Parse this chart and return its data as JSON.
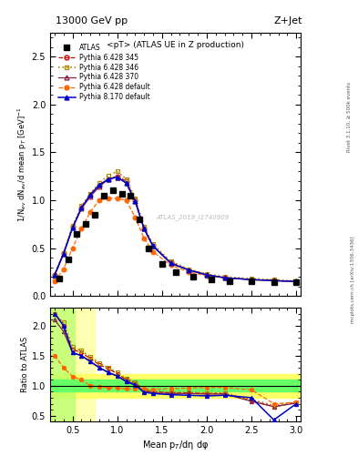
{
  "title_top": "13000 GeV pp",
  "title_right": "Z+Jet",
  "panel_title": "<pT> (ATLAS UE in Z production)",
  "ylabel_main": "1/N$_{ev}$ dN$_{ev}$/d mean p$_T$ [GeV]$^{-1}$",
  "ylabel_ratio": "Ratio to ATLAS",
  "xlabel": "Mean p$_{T}$/dη dφ",
  "watermark": "ATLAS_2019_I1740909",
  "rivet_text": "Rivet 3.1.10, ≥ 500k events",
  "mcplots_text": "mcplots.cern.ch [arXiv:1306.3436]",
  "x_atlas": [
    0.35,
    0.45,
    0.55,
    0.65,
    0.75,
    0.85,
    0.95,
    1.05,
    1.15,
    1.25,
    1.35,
    1.5,
    1.65,
    1.85,
    2.05,
    2.25,
    2.5,
    2.75,
    3.0
  ],
  "y_atlas": [
    0.18,
    0.38,
    0.65,
    0.75,
    0.85,
    1.05,
    1.1,
    1.07,
    1.05,
    0.8,
    0.5,
    0.33,
    0.25,
    0.2,
    0.17,
    0.155,
    0.15,
    0.14,
    0.14
  ],
  "x_mc": [
    0.3,
    0.4,
    0.5,
    0.6,
    0.7,
    0.8,
    0.9,
    1.0,
    1.1,
    1.2,
    1.3,
    1.4,
    1.6,
    1.8,
    2.0,
    2.2,
    2.5,
    2.75,
    3.0
  ],
  "y_py6_345": [
    0.22,
    0.45,
    0.72,
    0.92,
    1.05,
    1.15,
    1.22,
    1.25,
    1.2,
    1.0,
    0.7,
    0.52,
    0.35,
    0.27,
    0.22,
    0.19,
    0.17,
    0.16,
    0.15
  ],
  "y_py6_346": [
    0.22,
    0.45,
    0.73,
    0.94,
    1.07,
    1.18,
    1.26,
    1.3,
    1.22,
    1.02,
    0.72,
    0.54,
    0.36,
    0.28,
    0.23,
    0.2,
    0.18,
    0.17,
    0.155
  ],
  "y_py6_370": [
    0.21,
    0.44,
    0.71,
    0.91,
    1.04,
    1.14,
    1.22,
    1.24,
    1.18,
    0.99,
    0.7,
    0.52,
    0.34,
    0.27,
    0.22,
    0.19,
    0.17,
    0.16,
    0.15
  ],
  "y_py6_def": [
    0.15,
    0.28,
    0.5,
    0.7,
    0.88,
    1.0,
    1.02,
    1.02,
    1.0,
    0.82,
    0.6,
    0.46,
    0.32,
    0.25,
    0.21,
    0.19,
    0.17,
    0.16,
    0.145
  ],
  "y_py8_def": [
    0.22,
    0.44,
    0.71,
    0.92,
    1.06,
    1.16,
    1.22,
    1.24,
    1.18,
    0.99,
    0.7,
    0.52,
    0.34,
    0.27,
    0.22,
    0.19,
    0.17,
    0.16,
    0.15
  ],
  "ratio_py6_345": [
    2.2,
    2.0,
    1.6,
    1.55,
    1.45,
    1.35,
    1.28,
    1.2,
    1.1,
    1.05,
    0.92,
    0.9,
    0.88,
    0.88,
    0.87,
    0.87,
    0.75,
    0.65,
    0.72
  ],
  "ratio_py6_346": [
    2.2,
    2.05,
    1.65,
    1.58,
    1.48,
    1.38,
    1.3,
    1.22,
    1.12,
    1.06,
    0.94,
    0.92,
    0.89,
    0.89,
    0.88,
    0.88,
    0.77,
    0.67,
    0.73
  ],
  "ratio_py6_370": [
    2.1,
    1.9,
    1.55,
    1.5,
    1.4,
    1.3,
    1.22,
    1.16,
    1.08,
    1.02,
    0.9,
    0.88,
    0.87,
    0.87,
    0.86,
    0.86,
    0.74,
    0.65,
    0.71
  ],
  "ratio_py6_def": [
    1.5,
    1.3,
    1.15,
    1.1,
    1.0,
    0.98,
    0.97,
    0.96,
    0.95,
    0.95,
    0.95,
    0.94,
    0.95,
    0.96,
    0.97,
    0.97,
    0.93,
    0.7,
    0.72
  ],
  "ratio_py8_def": [
    2.2,
    2.0,
    1.55,
    1.5,
    1.4,
    1.3,
    1.22,
    1.16,
    1.07,
    1.01,
    0.89,
    0.87,
    0.85,
    0.84,
    0.83,
    0.84,
    0.8,
    0.43,
    0.7
  ],
  "color_atlas": "#000000",
  "color_py6_345": "#cc0000",
  "color_py6_346": "#aa8800",
  "color_py6_370": "#882244",
  "color_py6_def": "#ff6600",
  "color_py8_def": "#0000cc",
  "xlim": [
    0.25,
    3.05
  ],
  "ylim_main": [
    0.0,
    2.75
  ],
  "ylim_ratio": [
    0.4,
    2.3
  ],
  "legend_entries": [
    "ATLAS",
    "Pythia 6.428 345",
    "Pythia 6.428 346",
    "Pythia 6.428 370",
    "Pythia 6.428 default",
    "Pythia 8.170 default"
  ]
}
